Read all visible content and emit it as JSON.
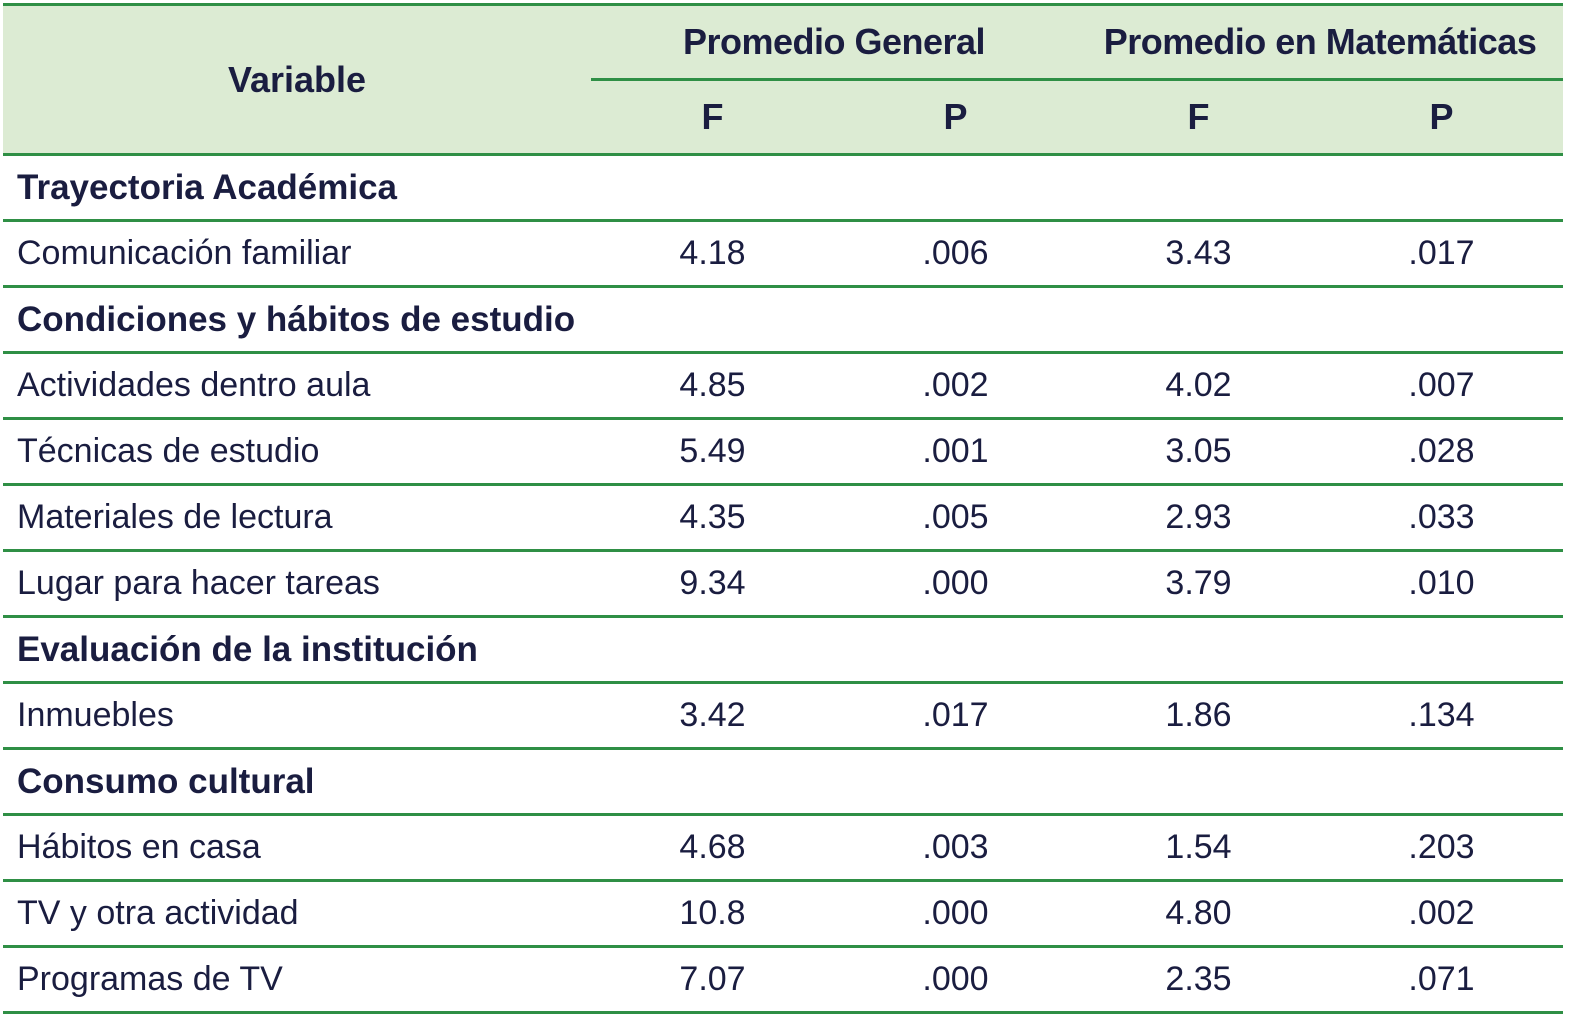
{
  "header": {
    "variable": "Variable",
    "group1": "Promedio General",
    "group2": "Promedio en Matemáticas",
    "f": "F",
    "p": "P"
  },
  "sections": [
    {
      "title": "Trayectoria Académica",
      "rows": [
        {
          "label": "Comunicación familiar",
          "f1": "4.18",
          "p1": ".006",
          "f2": "3.43",
          "p2": ".017"
        }
      ]
    },
    {
      "title": "Condiciones y hábitos de estudio",
      "rows": [
        {
          "label": "Actividades dentro aula",
          "f1": "4.85",
          "p1": ".002",
          "f2": "4.02",
          "p2": ".007"
        },
        {
          "label": "Técnicas de estudio",
          "f1": "5.49",
          "p1": ".001",
          "f2": "3.05",
          "p2": ".028"
        },
        {
          "label": "Materiales de lectura",
          "f1": "4.35",
          "p1": ".005",
          "f2": "2.93",
          "p2": ".033"
        },
        {
          "label": "Lugar para hacer tareas",
          "f1": "9.34",
          "p1": ".000",
          "f2": "3.79",
          "p2": ".010"
        }
      ]
    },
    {
      "title": "Evaluación de la institución",
      "rows": [
        {
          "label": "Inmuebles",
          "f1": "3.42",
          "p1": ".017",
          "f2": "1.86",
          "p2": ".134"
        }
      ]
    },
    {
      "title": "Consumo cultural",
      "rows": [
        {
          "label": "Hábitos en casa",
          "f1": "4.68",
          "p1": ".003",
          "f2": "1.54",
          "p2": ".203"
        },
        {
          "label": "TV y otra actividad",
          "f1": "10.8",
          "p1": ".000",
          "f2": "4.80",
          "p2": ".002"
        },
        {
          "label": "Programas de TV",
          "f1": "7.07",
          "p1": ".000",
          "f2": "2.35",
          "p2": ".071"
        }
      ]
    }
  ],
  "colors": {
    "rule": "#2f8f45",
    "header_bg": "#dcebd3",
    "text": "#1a1d40"
  }
}
